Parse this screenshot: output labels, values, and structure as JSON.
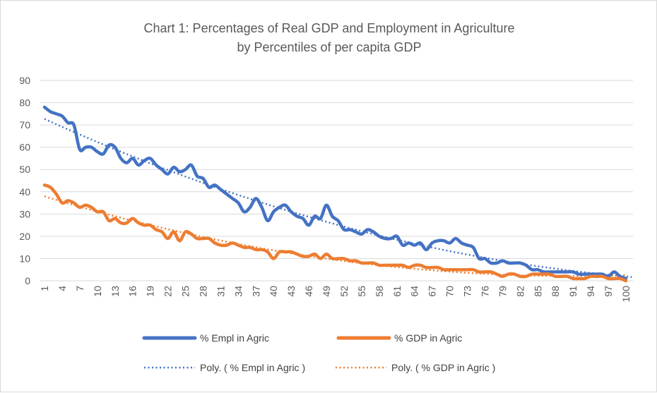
{
  "chart_data": {
    "type": "line",
    "title": "Chart 1: Percentages of Real GDP and Employment in Agriculture",
    "subtitle": "by Percentiles of per capita GDP",
    "xlabel": "",
    "ylabel": "",
    "xlim": [
      1,
      100
    ],
    "ylim": [
      0,
      90
    ],
    "ytick_labels": [
      "0",
      "10",
      "20",
      "30",
      "40",
      "50",
      "60",
      "70",
      "80",
      "90"
    ],
    "xtick_labels": [
      "1",
      "4",
      "7",
      "10",
      "13",
      "16",
      "19",
      "22",
      "25",
      "28",
      "31",
      "34",
      "37",
      "40",
      "43",
      "46",
      "49",
      "52",
      "55",
      "58",
      "61",
      "64",
      "67",
      "70",
      "73",
      "76",
      "79",
      "82",
      "85",
      "88",
      "91",
      "94",
      "97",
      "100"
    ],
    "grid": "horizontal",
    "legend_position": "bottom",
    "x": [
      1,
      2,
      3,
      4,
      5,
      6,
      7,
      8,
      9,
      10,
      11,
      12,
      13,
      14,
      15,
      16,
      17,
      18,
      19,
      20,
      21,
      22,
      23,
      24,
      25,
      26,
      27,
      28,
      29,
      30,
      31,
      32,
      33,
      34,
      35,
      36,
      37,
      38,
      39,
      40,
      41,
      42,
      43,
      44,
      45,
      46,
      47,
      48,
      49,
      50,
      51,
      52,
      53,
      54,
      55,
      56,
      57,
      58,
      59,
      60,
      61,
      62,
      63,
      64,
      65,
      66,
      67,
      68,
      69,
      70,
      71,
      72,
      73,
      74,
      75,
      76,
      77,
      78,
      79,
      80,
      81,
      82,
      83,
      84,
      85,
      86,
      87,
      88,
      89,
      90,
      91,
      92,
      93,
      94,
      95,
      96,
      97,
      98,
      99,
      100
    ],
    "series": [
      {
        "name": "% Empl in Agric",
        "color": "#4472c4",
        "style": "solid",
        "values": [
          78,
          76,
          75,
          74,
          71,
          70,
          59,
          60,
          60,
          58,
          57,
          61,
          60,
          55,
          53,
          55,
          52,
          54,
          55,
          52,
          50,
          48,
          51,
          49,
          50,
          52,
          47,
          46,
          42,
          43,
          41,
          39,
          37,
          35,
          31,
          33,
          37,
          33,
          27,
          31,
          33,
          34,
          31,
          29,
          28,
          25,
          29,
          28,
          34,
          29,
          27,
          23,
          23,
          22,
          21,
          23,
          22,
          20,
          19,
          19,
          20,
          16,
          17,
          16,
          17,
          14,
          17,
          18,
          18,
          17,
          19,
          17,
          16,
          15,
          10,
          10,
          8,
          8,
          9,
          8,
          8,
          8,
          7,
          5,
          5,
          4,
          4,
          4,
          4,
          4,
          4,
          3,
          3,
          3,
          3,
          3,
          2,
          4,
          2,
          1
        ]
      },
      {
        "name": "% GDP in Agric",
        "color": "#ed7d31",
        "style": "solid",
        "values": [
          43,
          42,
          39,
          35,
          36,
          35,
          33,
          34,
          33,
          31,
          31,
          27,
          28,
          26,
          26,
          28,
          26,
          25,
          25,
          23,
          22,
          19,
          22,
          18,
          22,
          21,
          19,
          19,
          19,
          17,
          16,
          16,
          17,
          16,
          15,
          15,
          14,
          14,
          13,
          10,
          13,
          13,
          13,
          12,
          11,
          11,
          12,
          10,
          12,
          10,
          10,
          10,
          9,
          9,
          8,
          8,
          8,
          7,
          7,
          7,
          7,
          7,
          6,
          7,
          7,
          6,
          6,
          6,
          5,
          5,
          5,
          5,
          5,
          5,
          4,
          4,
          4,
          3,
          2,
          3,
          3,
          2,
          2,
          3,
          3,
          3,
          3,
          2,
          2,
          2,
          1,
          1,
          1,
          2,
          2,
          2,
          1,
          1,
          1,
          0
        ]
      },
      {
        "name": "Poly. ( % Empl in Agric )",
        "color": "#4472c4",
        "style": "dotted",
        "trend_of": "% Empl in Agric",
        "start": [
          1,
          73
        ],
        "end": [
          101,
          1.5
        ]
      },
      {
        "name": "Poly. ( % GDP in Agric )",
        "color": "#ed7d31",
        "style": "dotted",
        "trend_of": "% GDP in Agric",
        "start": [
          1,
          37.5
        ],
        "end": [
          100,
          1
        ]
      }
    ]
  }
}
